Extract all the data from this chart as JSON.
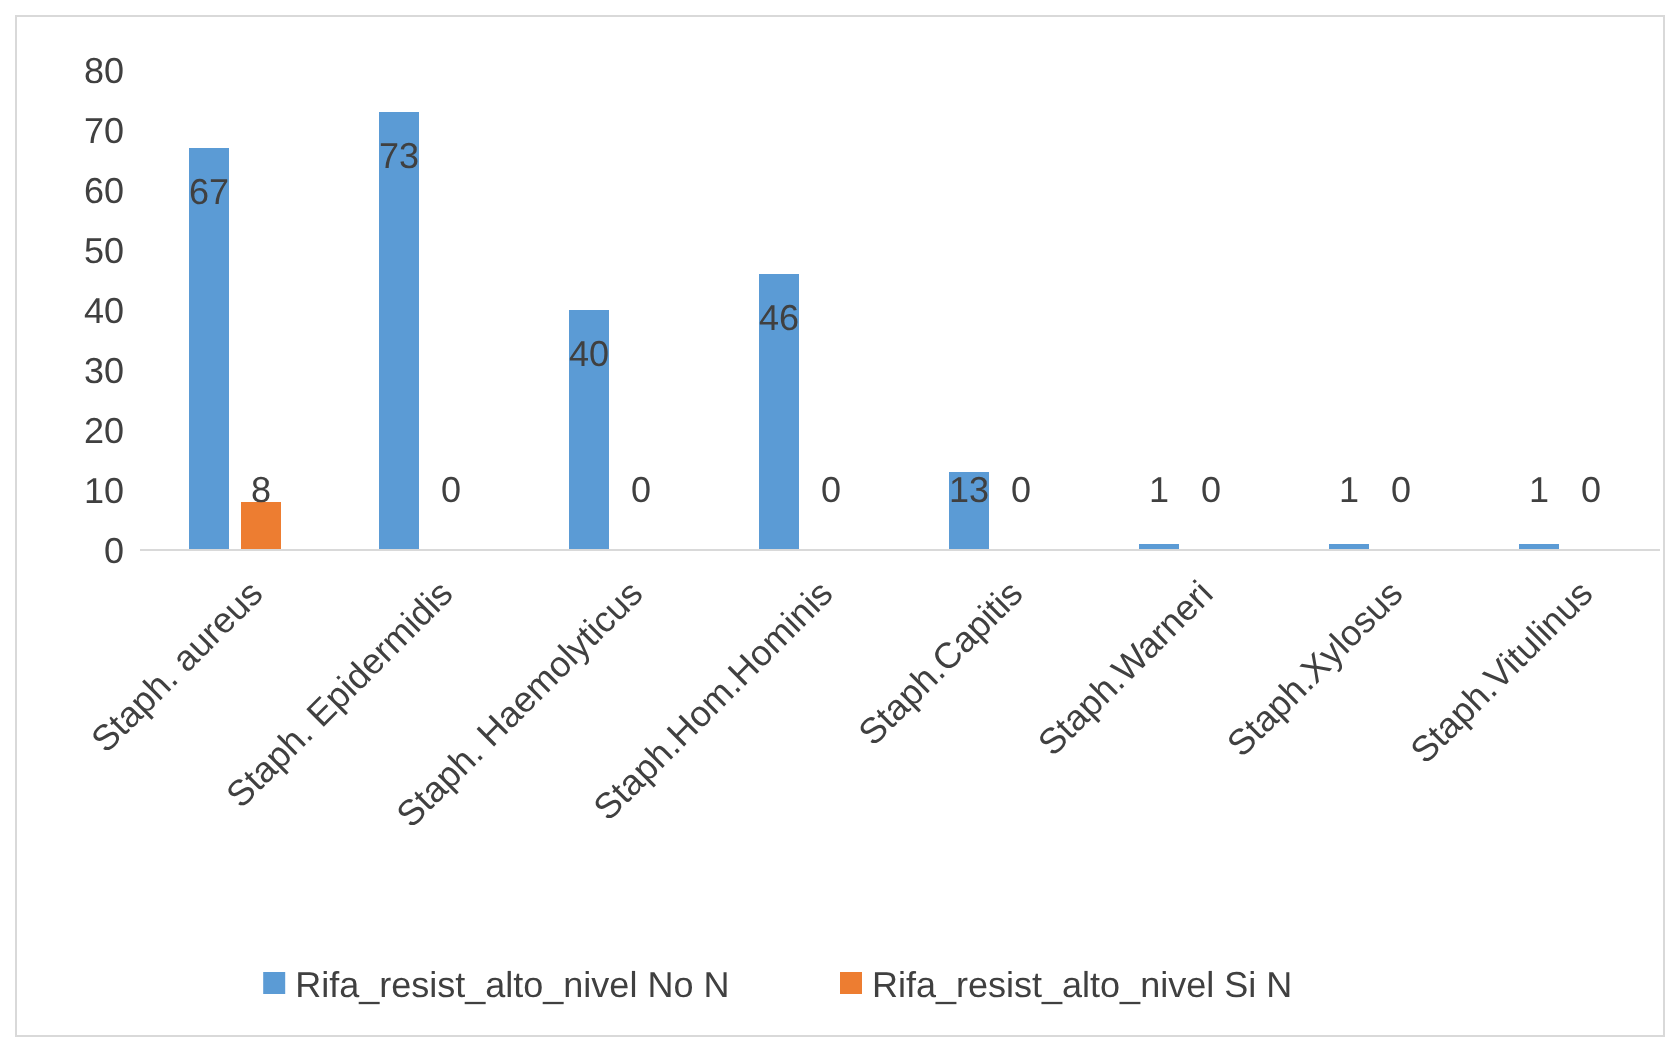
{
  "chart_data": {
    "type": "bar",
    "categories": [
      "Staph. aureus",
      "Staph. Epidermidis",
      "Staph. Haemolyticus",
      "Staph.Hom.Hominis",
      "Staph.Capitis",
      "Staph.Warneri",
      "Staph.Xylosus",
      "Staph.Vitulinus"
    ],
    "series": [
      {
        "name": "Rifa_resist_alto_nivel No N",
        "color": "#5b9bd5",
        "values": [
          67,
          73,
          40,
          46,
          13,
          1,
          1,
          1
        ]
      },
      {
        "name": "Rifa_resist_alto_nivel Si N",
        "color": "#ed7d31",
        "values": [
          8,
          0,
          0,
          0,
          0,
          0,
          0,
          0
        ]
      }
    ],
    "ylim": [
      0,
      80
    ],
    "yticks": [
      0,
      10,
      20,
      30,
      40,
      50,
      60,
      70,
      80
    ],
    "data_labels": true,
    "legend": "bottom"
  }
}
